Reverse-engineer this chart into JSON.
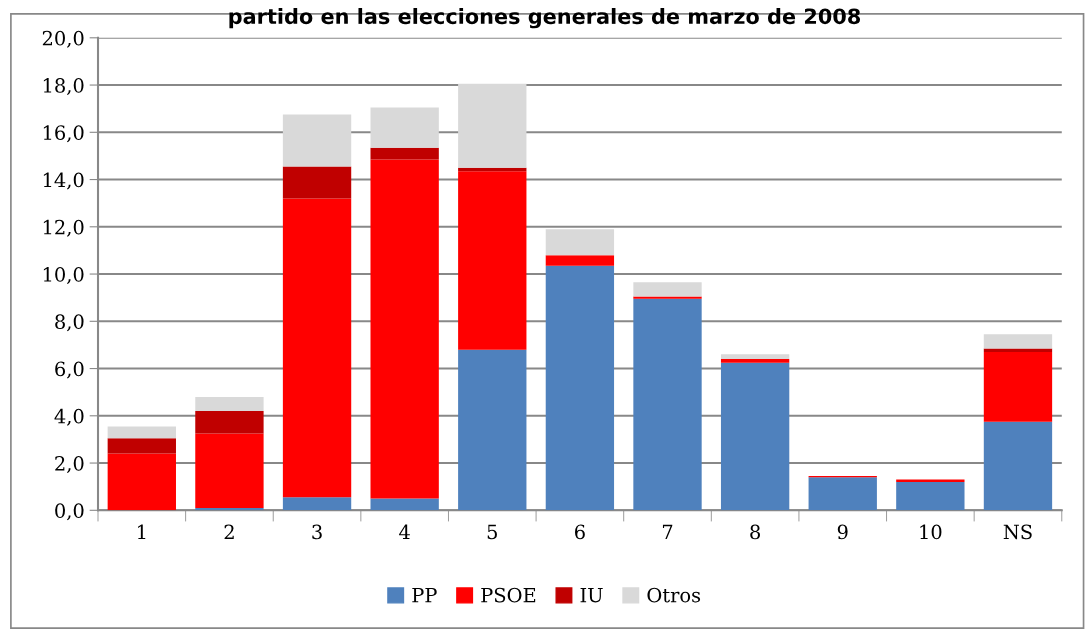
{
  "chart_data": {
    "type": "bar",
    "title": "partido en las elecciones generales de marzo de 2008",
    "stacked": true,
    "categories": [
      "1",
      "2",
      "3",
      "4",
      "5",
      "6",
      "7",
      "8",
      "9",
      "10",
      "NS"
    ],
    "series": [
      {
        "name": "PP",
        "color": "#4f81bd",
        "values": [
          0,
          0.1,
          0.55,
          0.5,
          6.8,
          10.35,
          8.95,
          6.25,
          1.4,
          1.2,
          3.75
        ]
      },
      {
        "name": "PSOE",
        "color": "#ff0000",
        "values": [
          2.4,
          3.15,
          12.65,
          14.35,
          7.55,
          0.45,
          0.1,
          0.15,
          0.05,
          0.1,
          2.95
        ]
      },
      {
        "name": "IU",
        "color": "#c00000",
        "values": [
          0.65,
          0.95,
          1.35,
          0.5,
          0.15,
          0,
          0,
          0,
          0,
          0,
          0.15
        ]
      },
      {
        "name": "Otros",
        "color": "#d9d9d9",
        "values": [
          0.5,
          0.6,
          2.2,
          1.7,
          3.55,
          1.1,
          0.6,
          0.2,
          0,
          0,
          0.6
        ]
      }
    ],
    "ylim": [
      0,
      20
    ],
    "yticks": [
      {
        "value": 0,
        "label": "0,0"
      },
      {
        "value": 2,
        "label": "2,0"
      },
      {
        "value": 4,
        "label": "4,0"
      },
      {
        "value": 6,
        "label": "6,0"
      },
      {
        "value": 8,
        "label": "8,0"
      },
      {
        "value": 10,
        "label": "10,0"
      },
      {
        "value": 12,
        "label": "12,0"
      },
      {
        "value": 14,
        "label": "14,0"
      },
      {
        "value": 16,
        "label": "16,0"
      },
      {
        "value": 18,
        "label": "18,0"
      },
      {
        "value": 20,
        "label": "20,0"
      }
    ],
    "grid": "y",
    "legend": "bottom"
  }
}
